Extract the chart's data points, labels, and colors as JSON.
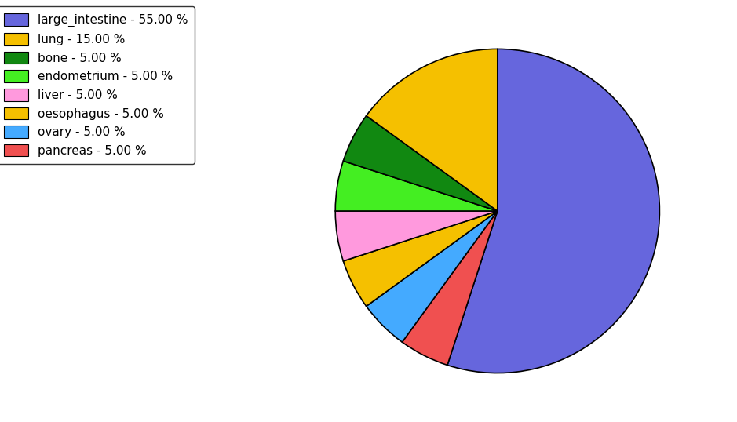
{
  "labels": [
    "large_intestine",
    "pancreas",
    "ovary",
    "oesophagus",
    "liver",
    "endometrium",
    "bone",
    "lung"
  ],
  "values": [
    55.0,
    5.0,
    5.0,
    5.0,
    5.0,
    5.0,
    5.0,
    15.0
  ],
  "colors": [
    "#6666dd",
    "#f05050",
    "#44aaff",
    "#f5c000",
    "#ff99dd",
    "#44ee22",
    "#118811",
    "#f5c000"
  ],
  "legend_labels": [
    "large_intestine - 55.00 %",
    "lung - 15.00 %",
    "bone - 5.00 %",
    "endometrium - 5.00 %",
    "liver - 5.00 %",
    "oesophagus - 5.00 %",
    "ovary - 5.00 %",
    "pancreas - 5.00 %"
  ],
  "legend_colors": [
    "#6666dd",
    "#f5c000",
    "#118811",
    "#44ee22",
    "#ff99dd",
    "#f5c000",
    "#44aaff",
    "#f05050"
  ],
  "background_color": "#ffffff",
  "startangle": 90,
  "figsize": [
    9.39,
    5.38
  ],
  "dpi": 100
}
